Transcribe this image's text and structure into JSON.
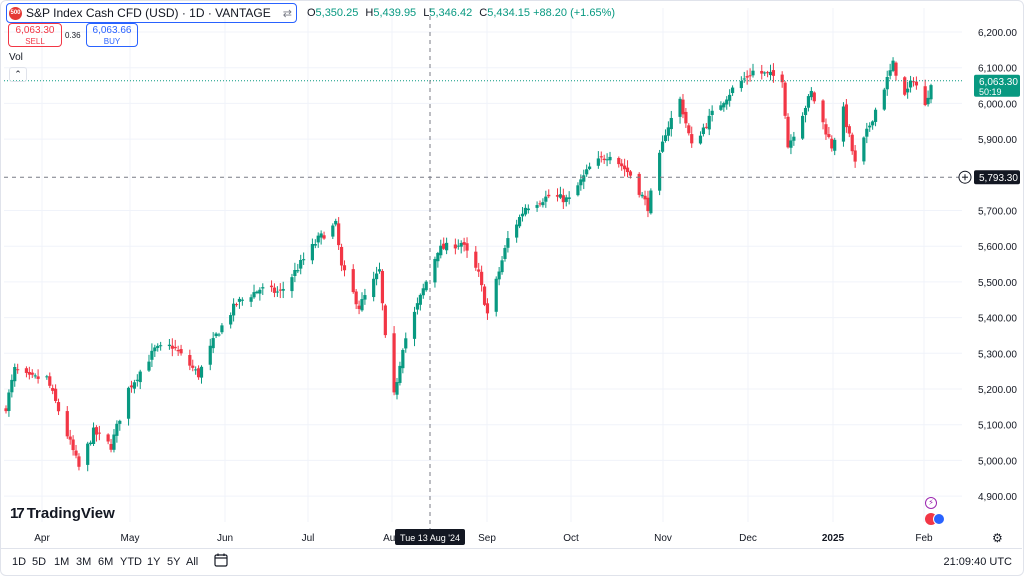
{
  "header": {
    "symbol": "S&P Index Cash CFD (USD) · 1D · VANTAGE",
    "logo_text": "500",
    "ohlc": [
      {
        "k": "O",
        "v": "5,350.25"
      },
      {
        "k": "H",
        "v": "5,439.95"
      },
      {
        "k": "L",
        "v": "5,346.42"
      },
      {
        "k": "C",
        "v": "5,434.15 +88.20 (+1.65%)"
      }
    ]
  },
  "trade": {
    "sell_price": "6,063.30",
    "sell_label": "SELL",
    "buy_price": "6,063.66",
    "buy_label": "BUY",
    "spread": "0.36"
  },
  "vol_label": "Vol",
  "branding": "TradingView",
  "ranges": [
    "1D",
    "5D",
    "1M",
    "3M",
    "6M",
    "YTD",
    "1Y",
    "5Y",
    "All"
  ],
  "clock": "21:09:40 UTC",
  "price_axis": {
    "labels": [
      "6,200.00",
      "6,100.00",
      "6,000.00",
      "5,900.00",
      "5,700.00",
      "5,600.00",
      "5,500.00",
      "5,400.00",
      "5,300.00",
      "5,200.00",
      "5,100.00",
      "5,000.00",
      "4,900.00"
    ],
    "current_price": "6,063.30",
    "countdown": "50:19",
    "crosshair_price": "5,793.30",
    "current_color": "#089981"
  },
  "time_axis": {
    "labels": [
      "Apr",
      "May",
      "Jun",
      "Jul",
      "Aug",
      "Sep",
      "Oct",
      "Nov",
      "Dec",
      "2025",
      "Feb"
    ],
    "crosshair_date": "Tue 13 Aug '24"
  },
  "chart_data": {
    "type": "candlestick",
    "title": "S&P Index Cash CFD (USD) · 1D · VANTAGE",
    "ylim": [
      4850,
      6250
    ],
    "up_color": "#089981",
    "down_color": "#f23645",
    "x_range": [
      "2024-03-25",
      "2025-02-05"
    ],
    "waypoints": [
      {
        "d": "2024-03-25",
        "c": 5150
      },
      {
        "d": "2024-03-28",
        "c": 5254
      },
      {
        "d": "2024-04-02",
        "c": 5230
      },
      {
        "d": "2024-04-08",
        "c": 5230
      },
      {
        "d": "2024-04-12",
        "c": 5140
      },
      {
        "d": "2024-04-19",
        "c": 4980
      },
      {
        "d": "2024-04-24",
        "c": 5080
      },
      {
        "d": "2024-04-30",
        "c": 5040
      },
      {
        "d": "2024-05-06",
        "c": 5200
      },
      {
        "d": "2024-05-15",
        "c": 5310
      },
      {
        "d": "2024-05-21",
        "c": 5320
      },
      {
        "d": "2024-05-30",
        "c": 5240
      },
      {
        "d": "2024-06-05",
        "c": 5350
      },
      {
        "d": "2024-06-12",
        "c": 5440
      },
      {
        "d": "2024-06-20",
        "c": 5480
      },
      {
        "d": "2024-06-27",
        "c": 5470
      },
      {
        "d": "2024-07-03",
        "c": 5540
      },
      {
        "d": "2024-07-10",
        "c": 5620
      },
      {
        "d": "2024-07-16",
        "c": 5660
      },
      {
        "d": "2024-07-18",
        "c": 5540
      },
      {
        "d": "2024-07-24",
        "c": 5430
      },
      {
        "d": "2024-07-31",
        "c": 5530
      },
      {
        "d": "2024-08-02",
        "c": 5340
      },
      {
        "d": "2024-08-05",
        "c": 5180
      },
      {
        "d": "2024-08-08",
        "c": 5320
      },
      {
        "d": "2024-08-13",
        "c": 5434
      },
      {
        "d": "2024-08-20",
        "c": 5590
      },
      {
        "d": "2024-08-28",
        "c": 5610
      },
      {
        "d": "2024-09-03",
        "c": 5520
      },
      {
        "d": "2024-09-06",
        "c": 5410
      },
      {
        "d": "2024-09-13",
        "c": 5620
      },
      {
        "d": "2024-09-19",
        "c": 5710
      },
      {
        "d": "2024-09-27",
        "c": 5740
      },
      {
        "d": "2024-10-04",
        "c": 5730
      },
      {
        "d": "2024-10-11",
        "c": 5820
      },
      {
        "d": "2024-10-18",
        "c": 5860
      },
      {
        "d": "2024-10-25",
        "c": 5800
      },
      {
        "d": "2024-10-31",
        "c": 5710
      },
      {
        "d": "2024-11-06",
        "c": 5920
      },
      {
        "d": "2024-11-11",
        "c": 6010
      },
      {
        "d": "2024-11-15",
        "c": 5880
      },
      {
        "d": "2024-11-22",
        "c": 5970
      },
      {
        "d": "2024-11-29",
        "c": 6040
      },
      {
        "d": "2024-12-06",
        "c": 6090
      },
      {
        "d": "2024-12-16",
        "c": 6070
      },
      {
        "d": "2024-12-18",
        "c": 5880
      },
      {
        "d": "2024-12-26",
        "c": 6030
      },
      {
        "d": "2025-01-02",
        "c": 5880
      },
      {
        "d": "2025-01-06",
        "c": 5980
      },
      {
        "d": "2025-01-10",
        "c": 5830
      },
      {
        "d": "2025-01-15",
        "c": 5940
      },
      {
        "d": "2025-01-23",
        "c": 6110
      },
      {
        "d": "2025-01-27",
        "c": 6020
      },
      {
        "d": "2025-01-30",
        "c": 6070
      },
      {
        "d": "2025-02-03",
        "c": 5990
      },
      {
        "d": "2025-02-05",
        "c": 6063
      }
    ]
  }
}
